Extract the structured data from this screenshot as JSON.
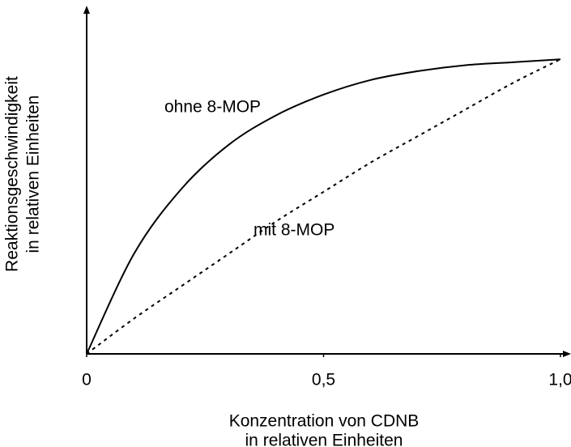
{
  "chart_data": {
    "type": "line",
    "x_label": [
      "Konzentration von CDNB",
      "in relativen Einheiten"
    ],
    "y_label": [
      "Reaktionsgeschwindigkeit",
      "in relativen Einheiten"
    ],
    "x": [
      0,
      0.1,
      0.2,
      0.3,
      0.4,
      0.5,
      0.6,
      0.7,
      0.8,
      0.9,
      1
    ],
    "series": [
      {
        "name": "ohne 8-MOP",
        "color": "#000000",
        "style": "solid",
        "values": [
          0,
          0.34,
          0.56,
          0.71,
          0.81,
          0.88,
          0.93,
          0.96,
          0.98,
          0.99,
          1
        ]
      },
      {
        "name": "mit 8-MOP",
        "color": "#000000",
        "style": "dotted",
        "values": [
          0,
          0.12,
          0.23,
          0.34,
          0.45,
          0.55,
          0.65,
          0.74,
          0.83,
          0.92,
          1
        ]
      }
    ],
    "xlim": [
      0,
      1.02
    ],
    "ylim": [
      0,
      1.16
    ],
    "xticks": [
      0,
      {
        "value": 0.5,
        "label": "0,5"
      },
      {
        "value": 1,
        "label": "1,0"
      }
    ],
    "grid": false
  }
}
